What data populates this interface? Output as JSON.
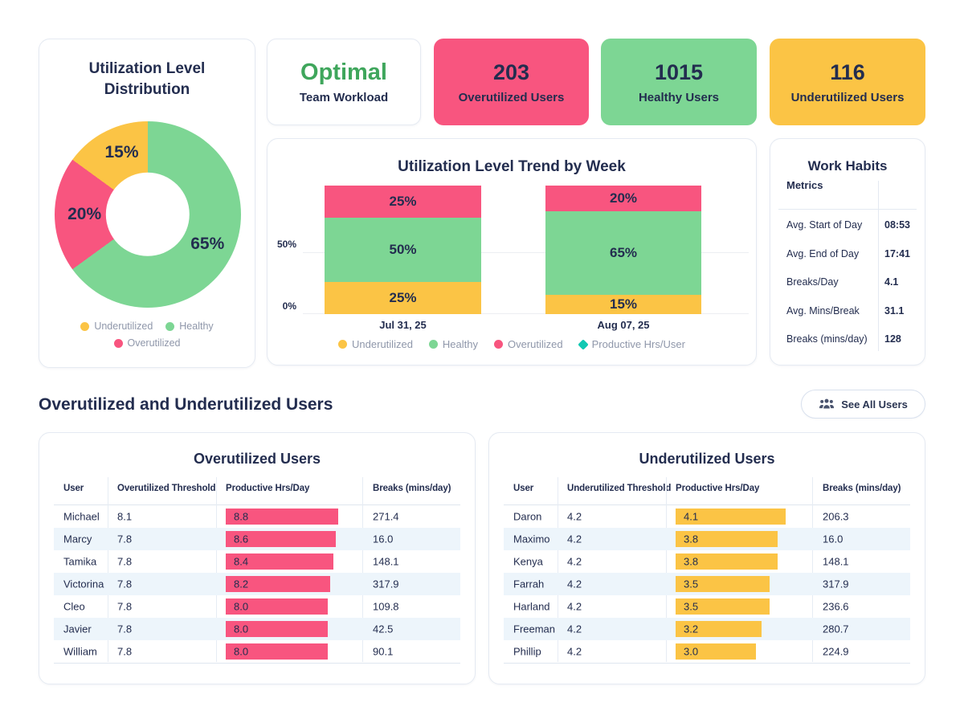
{
  "colors": {
    "pink": "#F8557F",
    "green": "#7DD694",
    "yellow": "#FBC445",
    "teal": "#11C9B3",
    "navy": "#232D4F",
    "optimal_green": "#3FA65C",
    "stripe": "#EDF5FB",
    "border": "#E5EAF2"
  },
  "donut": {
    "title_line1": "Utilization Level",
    "title_line2": "Distribution",
    "slices": [
      {
        "label": "Healthy",
        "pct": 65,
        "display": "65%",
        "color": "#7DD694"
      },
      {
        "label": "Overutilized",
        "pct": 20,
        "display": "20%",
        "color": "#F8557F"
      },
      {
        "label": "Underutilized",
        "pct": 15,
        "display": "15%",
        "color": "#FBC445"
      }
    ],
    "legend": [
      {
        "label": "Underutilized",
        "color": "#FBC445"
      },
      {
        "label": "Healthy",
        "color": "#7DD694"
      },
      {
        "label": "Overutilized",
        "color": "#F8557F"
      }
    ]
  },
  "status_card": {
    "value": "Optimal",
    "label": "Team Workload",
    "value_color": "#3FA65C"
  },
  "stat_cards": [
    {
      "value": "203",
      "label": "Overutilized Users",
      "bg": "#F8557F"
    },
    {
      "value": "1015",
      "label": "Healthy Users",
      "bg": "#7DD694"
    },
    {
      "value": "116",
      "label": "Underutilized Users",
      "bg": "#FBC445"
    }
  ],
  "trend": {
    "title": "Utilization Level Trend by Week",
    "y_ticks": {
      "t50": "50%",
      "t0": "0%"
    },
    "weeks": [
      {
        "label": "Jul 31, 25",
        "segments": [
          {
            "name": "Overutilized",
            "pct": 25,
            "display": "25%",
            "color": "#F8557F"
          },
          {
            "name": "Healthy",
            "pct": 50,
            "display": "50%",
            "color": "#7DD694"
          },
          {
            "name": "Underutilized",
            "pct": 25,
            "display": "25%",
            "color": "#FBC445"
          }
        ]
      },
      {
        "label": "Aug 07, 25",
        "segments": [
          {
            "name": "Overutilized",
            "pct": 20,
            "display": "20%",
            "color": "#F8557F"
          },
          {
            "name": "Healthy",
            "pct": 65,
            "display": "65%",
            "color": "#7DD694"
          },
          {
            "name": "Underutilized",
            "pct": 15,
            "display": "15%",
            "color": "#FBC445"
          }
        ]
      }
    ],
    "legend": [
      {
        "label": "Underutilized",
        "color": "#FBC445"
      },
      {
        "label": "Healthy",
        "color": "#7DD694"
      },
      {
        "label": "Overutilized",
        "color": "#F8557F"
      },
      {
        "label": "Productive Hrs/User",
        "color": "#11C9B3"
      }
    ]
  },
  "work_habits": {
    "title": "Work Habits",
    "header": "Metrics",
    "rows": [
      {
        "label": "Avg. Start of Day",
        "value": "08:53"
      },
      {
        "label": "Avg. End of Day",
        "value": "17:41"
      },
      {
        "label": "Breaks/Day",
        "value": "4.1"
      },
      {
        "label": "Avg. Mins/Break",
        "value": "31.1"
      },
      {
        "label": "Breaks (mins/day)",
        "value": "128"
      }
    ]
  },
  "section": {
    "title": "Overutilized and Underutilized Users",
    "button_label": "See All Users"
  },
  "tables": {
    "over": {
      "title": "Overutilized Users",
      "columns": [
        "User",
        "Overutilized Threshold",
        "Productive Hrs/Day",
        "Breaks (mins/day)"
      ],
      "bar_color": "#F8557F",
      "bar_max": 8.8,
      "rows": [
        {
          "user": "Michael",
          "threshold": "8.1",
          "hrs": 8.8,
          "hrs_display": "8.8",
          "breaks": "271.4"
        },
        {
          "user": "Marcy",
          "threshold": "7.8",
          "hrs": 8.6,
          "hrs_display": "8.6",
          "breaks": "16.0"
        },
        {
          "user": "Tamika",
          "threshold": "7.8",
          "hrs": 8.4,
          "hrs_display": "8.4",
          "breaks": "148.1"
        },
        {
          "user": "Victorina",
          "threshold": "7.8",
          "hrs": 8.2,
          "hrs_display": "8.2",
          "breaks": "317.9"
        },
        {
          "user": "Cleo",
          "threshold": "7.8",
          "hrs": 8.0,
          "hrs_display": "8.0",
          "breaks": "109.8"
        },
        {
          "user": "Javier",
          "threshold": "7.8",
          "hrs": 8.0,
          "hrs_display": "8.0",
          "breaks": "42.5"
        },
        {
          "user": "William",
          "threshold": "7.8",
          "hrs": 8.0,
          "hrs_display": "8.0",
          "breaks": "90.1"
        }
      ]
    },
    "under": {
      "title": "Underutilized Users",
      "columns": [
        "User",
        "Underutilized Threshold",
        "Productive Hrs/Day",
        "Breaks (mins/day)"
      ],
      "bar_color": "#FBC445",
      "bar_max": 4.1,
      "rows": [
        {
          "user": "Daron",
          "threshold": "4.2",
          "hrs": 4.1,
          "hrs_display": "4.1",
          "breaks": "206.3"
        },
        {
          "user": "Maximo",
          "threshold": "4.2",
          "hrs": 3.8,
          "hrs_display": "3.8",
          "breaks": "16.0"
        },
        {
          "user": "Kenya",
          "threshold": "4.2",
          "hrs": 3.8,
          "hrs_display": "3.8",
          "breaks": "148.1"
        },
        {
          "user": "Farrah",
          "threshold": "4.2",
          "hrs": 3.5,
          "hrs_display": "3.5",
          "breaks": "317.9"
        },
        {
          "user": "Harland",
          "threshold": "4.2",
          "hrs": 3.5,
          "hrs_display": "3.5",
          "breaks": "236.6"
        },
        {
          "user": "Freeman",
          "threshold": "4.2",
          "hrs": 3.2,
          "hrs_display": "3.2",
          "breaks": "280.7"
        },
        {
          "user": "Phillip",
          "threshold": "4.2",
          "hrs": 3.0,
          "hrs_display": "3.0",
          "breaks": "224.9"
        }
      ]
    }
  },
  "chart_data": [
    {
      "type": "pie",
      "title": "Utilization Level Distribution",
      "labels": [
        "Healthy",
        "Overutilized",
        "Underutilized"
      ],
      "values": [
        65,
        20,
        15
      ],
      "unit": "%",
      "legend_position": "bottom"
    },
    {
      "type": "bar",
      "subtype": "stacked",
      "title": "Utilization Level Trend by Week",
      "categories": [
        "Jul 31, 25",
        "Aug 07, 25"
      ],
      "series": [
        {
          "name": "Underutilized",
          "values": [
            25,
            15
          ]
        },
        {
          "name": "Healthy",
          "values": [
            50,
            65
          ]
        },
        {
          "name": "Overutilized",
          "values": [
            25,
            20
          ]
        }
      ],
      "ylabel": "",
      "xlabel": "",
      "ylim": [
        0,
        100
      ],
      "y_ticks": [
        "0%",
        "50%"
      ],
      "legend": [
        "Underutilized",
        "Healthy",
        "Overutilized",
        "Productive Hrs/User"
      ],
      "legend_position": "bottom",
      "grid": true
    },
    {
      "type": "bar",
      "title": "Overutilized Users - Productive Hrs/Day",
      "categories": [
        "Michael",
        "Marcy",
        "Tamika",
        "Victorina",
        "Cleo",
        "Javier",
        "William"
      ],
      "values": [
        8.8,
        8.6,
        8.4,
        8.2,
        8.0,
        8.0,
        8.0
      ]
    },
    {
      "type": "bar",
      "title": "Underutilized Users - Productive Hrs/Day",
      "categories": [
        "Daron",
        "Maximo",
        "Kenya",
        "Farrah",
        "Harland",
        "Freeman",
        "Phillip"
      ],
      "values": [
        4.1,
        3.8,
        3.8,
        3.5,
        3.5,
        3.2,
        3.0
      ]
    }
  ]
}
